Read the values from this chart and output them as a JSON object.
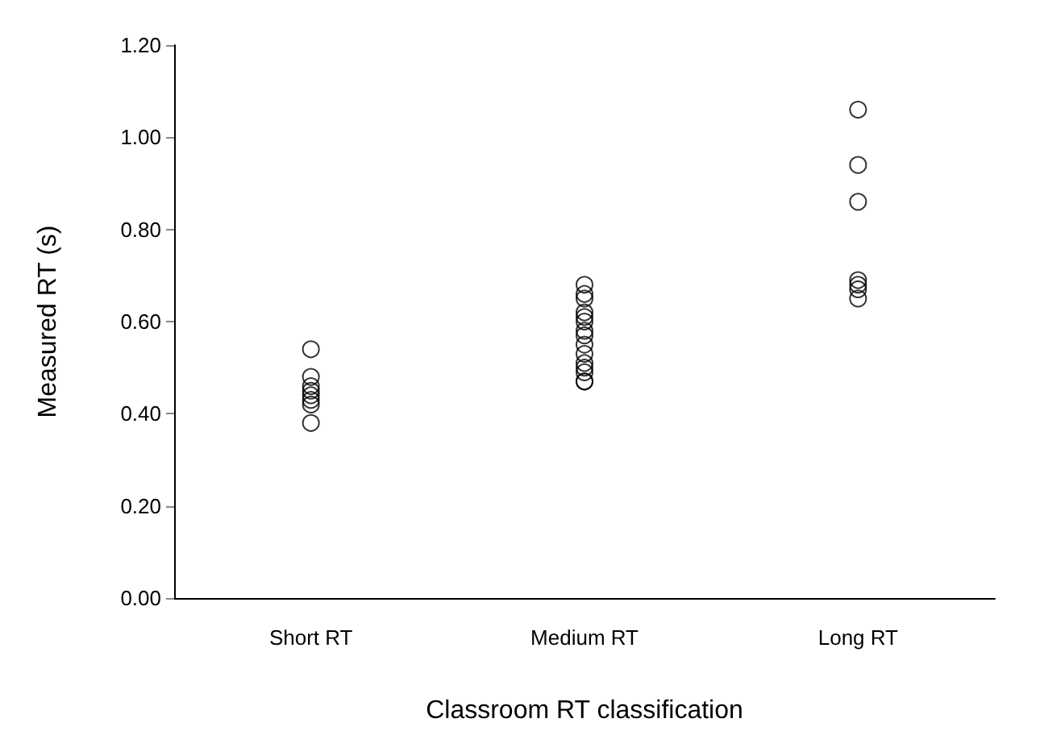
{
  "chart_data": {
    "type": "scatter",
    "xlabel": "Classroom RT classification",
    "ylabel": "Measured RT (s)",
    "categories": [
      "Short RT",
      "Medium RT",
      "Long RT"
    ],
    "series": [
      {
        "color": "#000000",
        "x": [
          "Short RT",
          "Short RT",
          "Short RT",
          "Short RT",
          "Short RT",
          "Short RT",
          "Short RT",
          "Short RT",
          "Medium RT",
          "Medium RT",
          "Medium RT",
          "Medium RT",
          "Medium RT",
          "Medium RT",
          "Medium RT",
          "Medium RT",
          "Medium RT",
          "Medium RT",
          "Medium RT",
          "Medium RT",
          "Medium RT",
          "Medium RT",
          "Medium RT",
          "Long RT",
          "Long RT",
          "Long RT",
          "Long RT",
          "Long RT",
          "Long RT",
          "Long RT"
        ],
        "values": [
          0.54,
          0.48,
          0.46,
          0.45,
          0.44,
          0.43,
          0.42,
          0.38,
          0.68,
          0.66,
          0.65,
          0.62,
          0.61,
          0.6,
          0.58,
          0.57,
          0.55,
          0.53,
          0.51,
          0.5,
          0.49,
          0.47,
          0.47,
          1.06,
          0.94,
          0.86,
          0.69,
          0.68,
          0.67,
          0.65
        ]
      }
    ],
    "ylim": [
      0,
      1.2
    ],
    "yticks": [
      {
        "value": 0,
        "label": "0.00"
      },
      {
        "value": 0.2,
        "label": "0.20"
      },
      {
        "value": 0.4,
        "label": "0.40"
      },
      {
        "value": 0.6,
        "label": "0.60"
      },
      {
        "value": 0.8,
        "label": "0.80"
      },
      {
        "value": 1,
        "label": "1.00"
      },
      {
        "value": 1.2,
        "label": "1.20"
      }
    ],
    "grid": false,
    "marker": "circle"
  }
}
